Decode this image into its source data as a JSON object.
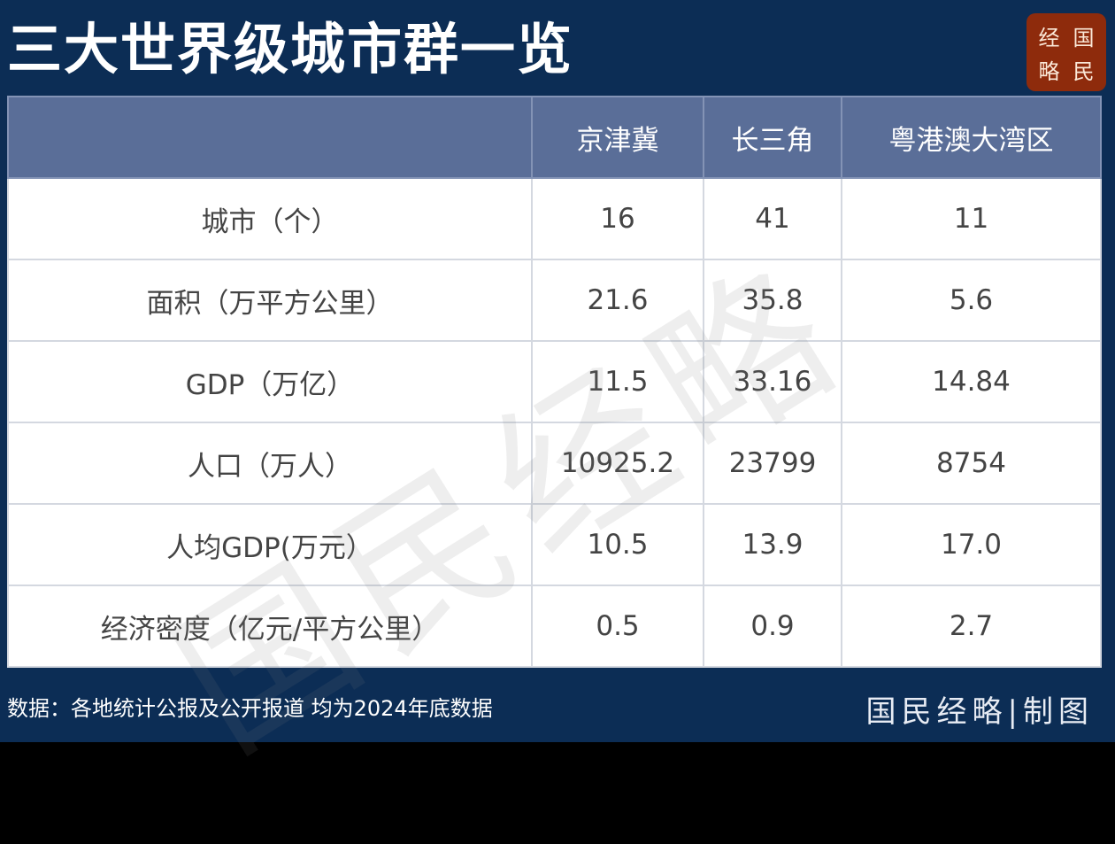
{
  "title": "三大世界级城市群一览",
  "logo": [
    "经",
    "国",
    "略",
    "民"
  ],
  "watermark": "国民经略",
  "chart_data": {
    "type": "table",
    "columns": [
      "",
      "京津冀",
      "长三角",
      "粤港澳大湾区"
    ],
    "rows": [
      [
        "城市（个）",
        "16",
        "41",
        "11"
      ],
      [
        "面积（万平方公里）",
        "21.6",
        "35.8",
        "5.6"
      ],
      [
        "GDP（万亿）",
        "11.5",
        "33.16",
        "14.84"
      ],
      [
        "人口（万人）",
        "10925.2",
        "23799",
        "8754"
      ],
      [
        "人均GDP(万元）",
        "10.5",
        "13.9",
        "17.0"
      ],
      [
        "经济密度（亿元/平方公里）",
        "0.5",
        "0.9",
        "2.7"
      ]
    ]
  },
  "footer": {
    "source": "数据：各地统计公报及公开报道 均为2024年底数据",
    "credit": "国民经略|制图"
  },
  "colors": {
    "background": "#0c2d55",
    "header": "#5a6e98",
    "logo": "#8e2b0c"
  }
}
